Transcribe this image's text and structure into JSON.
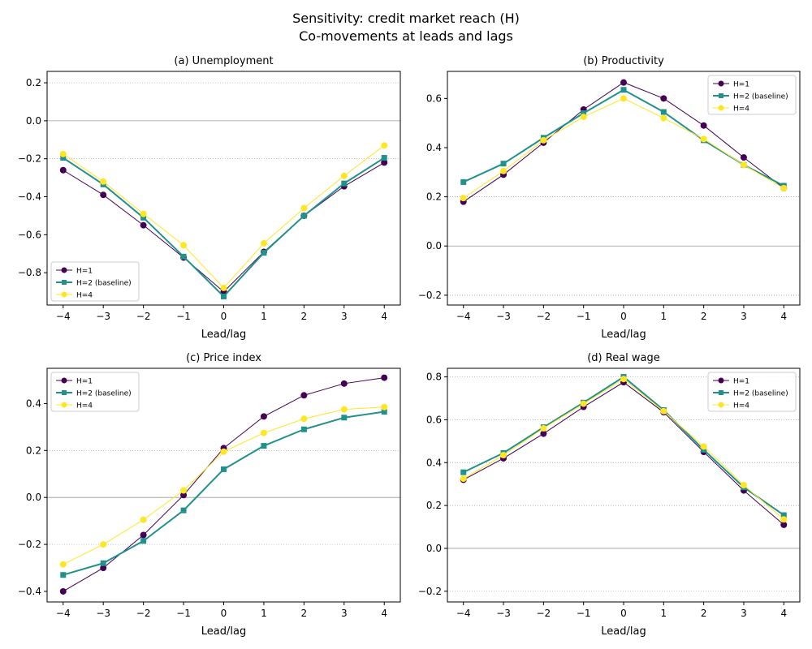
{
  "figure": {
    "title_line1": "Sensitivity: credit market reach (H)",
    "title_line2": "Co-movements at leads and lags"
  },
  "chart_data": [
    {
      "type": "line",
      "title": "(a) Unemployment",
      "xlabel": "Lead/lag",
      "ylabel": "",
      "x": [
        -4,
        -3,
        -2,
        -1,
        0,
        1,
        2,
        3,
        4
      ],
      "xlim": [
        -4.4,
        4.4
      ],
      "ylim": [
        -0.97,
        0.26
      ],
      "yticks": [
        0.2,
        0.0,
        -0.2,
        -0.4,
        -0.6,
        -0.8
      ],
      "ytick_labels": [
        "0.2",
        "0.0",
        "−0.2",
        "−0.4",
        "−0.6",
        "−0.8"
      ],
      "xtick_labels": [
        "−4",
        "−3",
        "−2",
        "−1",
        "0",
        "1",
        "2",
        "3",
        "4"
      ],
      "legend": "lower-left",
      "dotted_grid": [
        0.2,
        -0.2
      ],
      "zero_line": true,
      "series": [
        {
          "name": "H=1",
          "values": [
            -0.26,
            -0.39,
            -0.55,
            -0.72,
            -0.9,
            -0.69,
            -0.5,
            -0.345,
            -0.22
          ]
        },
        {
          "name": "H=2 (baseline)",
          "values": [
            -0.195,
            -0.335,
            -0.51,
            -0.715,
            -0.925,
            -0.695,
            -0.5,
            -0.33,
            -0.195
          ]
        },
        {
          "name": "H=4",
          "values": [
            -0.175,
            -0.32,
            -0.49,
            -0.655,
            -0.88,
            -0.645,
            -0.46,
            -0.29,
            -0.13
          ]
        }
      ]
    },
    {
      "type": "line",
      "title": "(b) Productivity",
      "xlabel": "Lead/lag",
      "ylabel": "",
      "x": [
        -4,
        -3,
        -2,
        -1,
        0,
        1,
        2,
        3,
        4
      ],
      "xlim": [
        -4.4,
        4.4
      ],
      "ylim": [
        -0.24,
        0.71
      ],
      "yticks": [
        0.6,
        0.4,
        0.2,
        0.0,
        -0.2
      ],
      "ytick_labels": [
        "0.6",
        "0.4",
        "0.2",
        "0.0",
        "−0.2"
      ],
      "xtick_labels": [
        "−4",
        "−3",
        "−2",
        "−1",
        "0",
        "1",
        "2",
        "3",
        "4"
      ],
      "legend": "top-right",
      "dotted_grid": [
        0.2,
        -0.2
      ],
      "zero_line": true,
      "series": [
        {
          "name": "H=1",
          "values": [
            0.18,
            0.29,
            0.42,
            0.555,
            0.665,
            0.6,
            0.49,
            0.36,
            0.235
          ]
        },
        {
          "name": "H=2 (baseline)",
          "values": [
            0.26,
            0.335,
            0.44,
            0.54,
            0.635,
            0.545,
            0.43,
            0.33,
            0.245
          ]
        },
        {
          "name": "H=4",
          "values": [
            0.195,
            0.305,
            0.43,
            0.525,
            0.6,
            0.52,
            0.435,
            0.33,
            0.235
          ]
        }
      ]
    },
    {
      "type": "line",
      "title": "(c) Price index",
      "xlabel": "Lead/lag",
      "ylabel": "",
      "x": [
        -4,
        -3,
        -2,
        -1,
        0,
        1,
        2,
        3,
        4
      ],
      "xlim": [
        -4.4,
        4.4
      ],
      "ylim": [
        -0.445,
        0.55
      ],
      "yticks": [
        0.4,
        0.2,
        0.0,
        -0.2,
        -0.4
      ],
      "ytick_labels": [
        "0.4",
        "0.2",
        "0.0",
        "−0.2",
        "−0.4"
      ],
      "xtick_labels": [
        "−4",
        "−3",
        "−2",
        "−1",
        "0",
        "1",
        "2",
        "3",
        "4"
      ],
      "legend": "top-left",
      "dotted_grid": [
        0.2,
        -0.2
      ],
      "zero_line": true,
      "series": [
        {
          "name": "H=1",
          "values": [
            -0.4,
            -0.3,
            -0.16,
            0.01,
            0.21,
            0.345,
            0.435,
            0.485,
            0.51
          ]
        },
        {
          "name": "H=2 (baseline)",
          "values": [
            -0.33,
            -0.28,
            -0.185,
            -0.055,
            0.12,
            0.22,
            0.29,
            0.34,
            0.365
          ]
        },
        {
          "name": "H=4",
          "values": [
            -0.285,
            -0.2,
            -0.095,
            0.03,
            0.195,
            0.275,
            0.335,
            0.375,
            0.385
          ]
        }
      ]
    },
    {
      "type": "line",
      "title": "(d) Real wage",
      "xlabel": "Lead/lag",
      "ylabel": "",
      "x": [
        -4,
        -3,
        -2,
        -1,
        0,
        1,
        2,
        3,
        4
      ],
      "xlim": [
        -4.4,
        4.4
      ],
      "ylim": [
        -0.25,
        0.84
      ],
      "yticks": [
        0.8,
        0.6,
        0.4,
        0.2,
        0.0,
        -0.2
      ],
      "ytick_labels": [
        "0.8",
        "0.6",
        "0.4",
        "0.2",
        "0.0",
        "−0.2"
      ],
      "xtick_labels": [
        "−4",
        "−3",
        "−2",
        "−1",
        "0",
        "1",
        "2",
        "3",
        "4"
      ],
      "legend": "top-right",
      "dotted_grid": [
        0.2,
        0.4,
        0.6,
        0.8,
        -0.2
      ],
      "zero_line": true,
      "series": [
        {
          "name": "H=1",
          "values": [
            0.32,
            0.42,
            0.535,
            0.66,
            0.775,
            0.635,
            0.45,
            0.27,
            0.11
          ]
        },
        {
          "name": "H=2 (baseline)",
          "values": [
            0.355,
            0.445,
            0.565,
            0.68,
            0.8,
            0.645,
            0.46,
            0.285,
            0.155
          ]
        },
        {
          "name": "H=4",
          "values": [
            0.325,
            0.435,
            0.56,
            0.675,
            0.79,
            0.64,
            0.475,
            0.295,
            0.135
          ]
        }
      ]
    }
  ],
  "series_style": {
    "H=1": {
      "color": "#440154",
      "marker": "circle",
      "linewidth": 1
    },
    "H=2 (baseline)": {
      "color": "#21918c",
      "marker": "square",
      "linewidth": 2
    },
    "H=4": {
      "color": "#fde725",
      "marker": "circle",
      "linewidth": 1
    }
  }
}
